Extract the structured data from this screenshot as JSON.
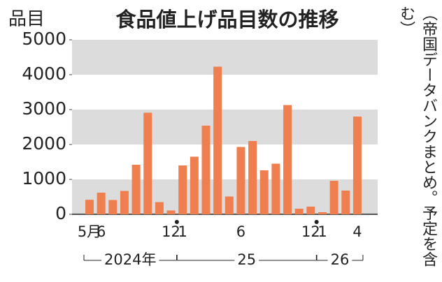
{
  "chart_data": {
    "type": "bar",
    "title": "食品値上げ品目数の推移",
    "y_label": "品目",
    "note": "（帝国データバンクまとめ。予定を含む）",
    "categories": [
      "5月",
      "6",
      null,
      null,
      null,
      null,
      null,
      "12",
      "1",
      null,
      null,
      null,
      null,
      "6",
      null,
      null,
      null,
      null,
      null,
      "12",
      "1",
      null,
      null,
      "4"
    ],
    "values": [
      417,
      620,
      410,
      670,
      1420,
      2911,
      350,
      110,
      1400,
      1650,
      2540,
      4230,
      510,
      1930,
      2100,
      1260,
      1450,
      3130,
      160,
      220,
      60,
      960,
      680,
      2800
    ],
    "groups": [
      {
        "label": "2024年",
        "span": 8
      },
      {
        "label": "25",
        "span": 12
      },
      {
        "label": "26",
        "span": 4
      }
    ],
    "color": "#f07f4f",
    "ylim": [
      0,
      5000
    ],
    "yticks": [
      0,
      1000,
      2000,
      3000,
      4000,
      5000
    ],
    "grid": "alternating-bands"
  }
}
